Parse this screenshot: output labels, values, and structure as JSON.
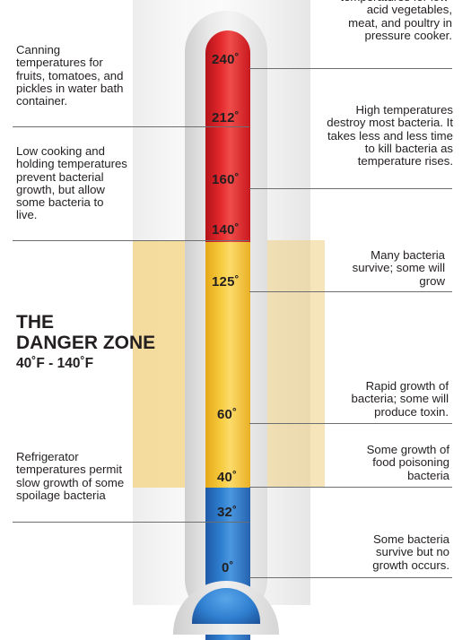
{
  "danger_zone": {
    "title_line1": "THE",
    "title_line2": "DANGER ZONE",
    "range": "40˚F - 140˚F"
  },
  "ticks": [
    "240˚",
    "212˚",
    "160˚",
    "140˚",
    "125˚",
    "60˚",
    "40˚",
    "32˚",
    "0˚"
  ],
  "zones": [
    {
      "name": "high-heat",
      "color": "#e52a2d"
    },
    {
      "name": "danger",
      "color": "#f7cc3f"
    },
    {
      "name": "cold",
      "color": "#2f7fd0"
    }
  ],
  "notes_left": [
    "Canning temperatures for fruits, tomatoes, and pickles in water bath container.",
    "Low cooking and holding temperatures prevent bacterial growth, but allow some bacteria to live.",
    "Refrigerator temperatures permit slow growth of some spoilage bacteria"
  ],
  "notes_right": [
    "temperatures for low-acid vegetables, meat, and poultry in pressure cooker.",
    "High temperatures destroy most bacteria. It takes less and less time to kill bacteria as temperature rises.",
    "Many bacteria survive; some will grow",
    "Rapid growth of bacteria; some will produce toxin.",
    "Some growth of food poisoning bacteria",
    "Some bacteria survive but no growth occurs."
  ]
}
